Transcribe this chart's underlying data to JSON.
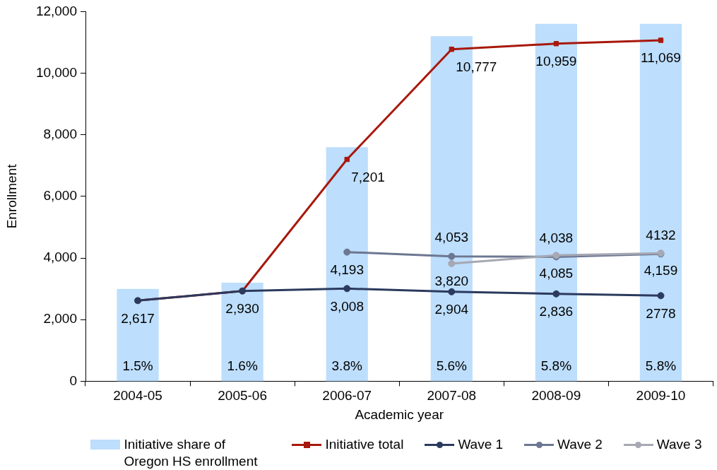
{
  "chart_data": {
    "type": "line",
    "categories": [
      "2004-05",
      "2005-06",
      "2006-07",
      "2007-08",
      "2008-09",
      "2009-10"
    ],
    "xlabel": "Academic year",
    "ylabel": "Enrollment",
    "ylim": [
      0,
      12000
    ],
    "yticks": [
      0,
      {
        "value": 2000,
        "label": "2,000"
      },
      {
        "value": 4000,
        "label": "4,000"
      },
      {
        "value": 6000,
        "label": "6,000"
      },
      {
        "value": 8000,
        "label": "8,000"
      },
      {
        "value": 10000,
        "label": "10,000"
      },
      {
        "value": 12000,
        "label": "12,000"
      }
    ],
    "y2lim": [
      0,
      6
    ],
    "series": [
      {
        "type": "bar",
        "name": "Initiative share of Oregon HS enrollment",
        "color": "#bddefc",
        "axis": "y2",
        "values": [
          1.5,
          1.6,
          3.8,
          5.6,
          5.8,
          5.8
        ],
        "value_labels": [
          "1.5%",
          "1.6%",
          "3.8%",
          "5.6%",
          "5.8%",
          "5.8%"
        ]
      },
      {
        "name": "Initiative total",
        "color": "#a8180c",
        "marker": "square",
        "values": [
          2617,
          2930,
          7201,
          10777,
          10959,
          11069
        ],
        "value_labels": [
          null,
          null,
          "7,201",
          "10,777",
          "10,959",
          "11,069"
        ]
      },
      {
        "name": "Wave 1",
        "color": "#2b3a5e",
        "values": [
          2617,
          2930,
          3008,
          2904,
          2836,
          2778
        ],
        "value_labels": [
          "2,617",
          "2,930",
          "3,008",
          "2,904",
          "2,836",
          "2778"
        ]
      },
      {
        "name": "Wave 2",
        "color": "#6c7791",
        "values": [
          null,
          null,
          4193,
          4053,
          4038,
          4132
        ],
        "value_labels": [
          null,
          null,
          "4,193",
          "4,053",
          "4,038",
          "4132"
        ]
      },
      {
        "name": "Wave 3",
        "color": "#a6a8b3",
        "values": [
          null,
          null,
          null,
          3820,
          4085,
          4159
        ],
        "value_labels": [
          null,
          null,
          null,
          "3,820",
          "4,085",
          "4,159"
        ]
      }
    ],
    "marker": "circle",
    "line_style": "solid",
    "legend": "bottom"
  }
}
